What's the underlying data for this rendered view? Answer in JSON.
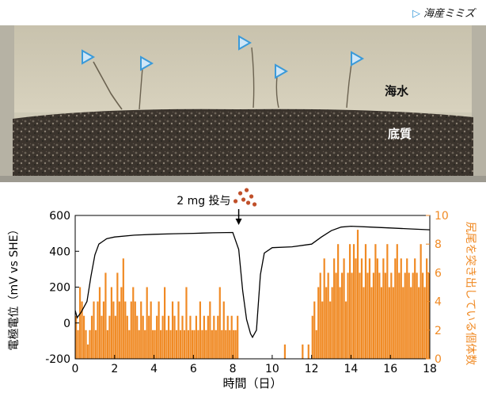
{
  "photo": {
    "legend_marker": "▷",
    "legend_text": "海産ミミズ",
    "water_label": "海水",
    "sediment_label": "底質"
  },
  "annotation": {
    "dose_text": "2 mg 投与"
  },
  "colors": {
    "potential_line": "#000000",
    "count_bars": "#f08a24",
    "marker": "#3a9ad9",
    "dose_dots": "#c0502a"
  },
  "chart_data": {
    "type": "bar+line",
    "xlabel": "時間（日）",
    "ylabel_left": "電極電位（mV vs SHE）",
    "ylabel_right": "尻尾を突き出している個体数",
    "xlim": [
      0,
      18
    ],
    "ylim_left": [
      -200,
      600
    ],
    "ylim_right": [
      0,
      10
    ],
    "x_ticks": [
      0,
      2,
      4,
      6,
      8,
      10,
      12,
      14,
      16,
      18
    ],
    "y_left_ticks": [
      -200,
      0,
      200,
      400,
      600
    ],
    "y_right_ticks": [
      0,
      2,
      4,
      6,
      8,
      10
    ],
    "potential_series": {
      "x": [
        0,
        0.1,
        0.3,
        0.6,
        0.8,
        1.0,
        1.2,
        1.6,
        2.0,
        3.0,
        4.0,
        5.0,
        6.0,
        7.0,
        8.0,
        8.3,
        8.5,
        8.7,
        8.9,
        9.0,
        9.2,
        9.4,
        9.6,
        10.0,
        11.0,
        12.0,
        12.5,
        13.0,
        13.5,
        14.0,
        15.0,
        16.0,
        17.0,
        18.0
      ],
      "y": [
        70,
        30,
        60,
        120,
        260,
        380,
        440,
        470,
        480,
        490,
        495,
        498,
        500,
        503,
        505,
        410,
        180,
        20,
        -60,
        -80,
        -40,
        270,
        390,
        420,
        425,
        440,
        480,
        515,
        535,
        540,
        535,
        530,
        525,
        520
      ]
    },
    "count_series": {
      "bin_width": 0.1,
      "values_by_day": [
        [
          3,
          2,
          5,
          4,
          3,
          2,
          1,
          2,
          3,
          4
        ],
        [
          2,
          4,
          5,
          3,
          4,
          6,
          2,
          3,
          5,
          4
        ],
        [
          3,
          6,
          4,
          5,
          7,
          4,
          3,
          2,
          4,
          5
        ],
        [
          4,
          3,
          2,
          4,
          3,
          2,
          5,
          3,
          4,
          2
        ],
        [
          2,
          3,
          4,
          2,
          3,
          5,
          2,
          3,
          2,
          4
        ],
        [
          3,
          2,
          4,
          2,
          3,
          2,
          5,
          2,
          3,
          2
        ],
        [
          2,
          3,
          2,
          4,
          2,
          3,
          2,
          3,
          4,
          2
        ],
        [
          3,
          2,
          3,
          5,
          2,
          4,
          2,
          3,
          2,
          3
        ],
        [
          2,
          2,
          3,
          0,
          0,
          0,
          0,
          0,
          0,
          0
        ],
        [
          0,
          0,
          0,
          0,
          0,
          0,
          0,
          0,
          0,
          0
        ],
        [
          0,
          0,
          0,
          0,
          0,
          0,
          1,
          0,
          0,
          0
        ],
        [
          0,
          0,
          0,
          0,
          0,
          1,
          0,
          0,
          1,
          0
        ],
        [
          3,
          4,
          2,
          5,
          6,
          4,
          7,
          5,
          6,
          4
        ],
        [
          5,
          7,
          6,
          8,
          5,
          6,
          7,
          4,
          6,
          8
        ],
        [
          6,
          8,
          7,
          9,
          6,
          7,
          5,
          8,
          6,
          7
        ],
        [
          5,
          6,
          8,
          7,
          6,
          5,
          7,
          6,
          8,
          5
        ],
        [
          6,
          5,
          7,
          8,
          6,
          7,
          5,
          6,
          7,
          6
        ],
        [
          5,
          6,
          7,
          6,
          5,
          8,
          6,
          5,
          7,
          6
        ]
      ]
    }
  }
}
